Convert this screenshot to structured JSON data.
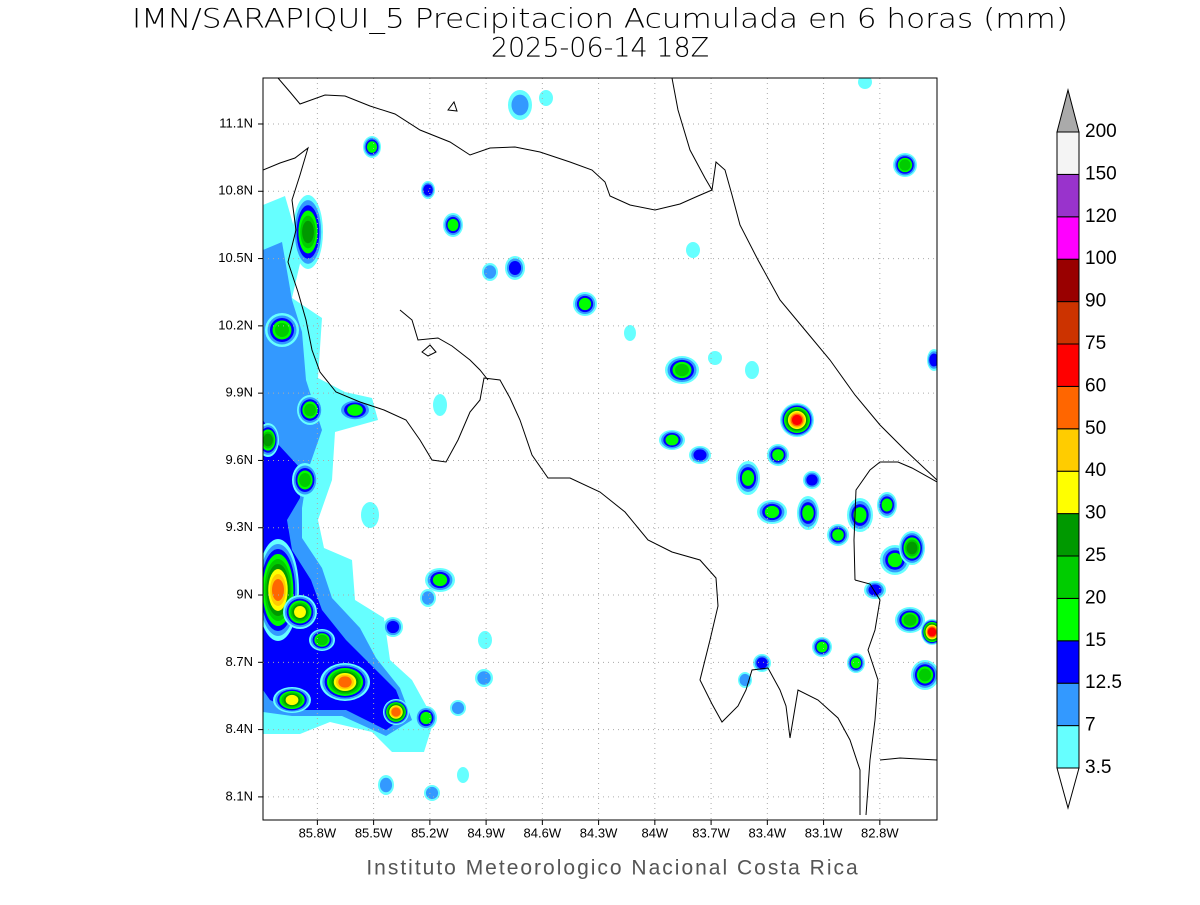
{
  "header": {
    "title": "IMN/SARAPIQUI_5 Precipitacion Acumulada en 6 horas (mm)",
    "subtitle": "2025-06-14 18Z"
  },
  "map": {
    "xlim": [
      -86.09,
      -82.495
    ],
    "ylim": [
      7.997,
      11.305
    ],
    "xticks": [
      {
        "value": -85.8,
        "label": "85.8W"
      },
      {
        "value": -85.5,
        "label": "85.5W"
      },
      {
        "value": -85.2,
        "label": "85.2W"
      },
      {
        "value": -84.9,
        "label": "84.9W"
      },
      {
        "value": -84.6,
        "label": "84.6W"
      },
      {
        "value": -84.3,
        "label": "84.3W"
      },
      {
        "value": -84.0,
        "label": "84W"
      },
      {
        "value": -83.7,
        "label": "83.7W"
      },
      {
        "value": -83.4,
        "label": "83.4W"
      },
      {
        "value": -83.1,
        "label": "83.1W"
      },
      {
        "value": -82.8,
        "label": "82.8W"
      }
    ],
    "yticks": [
      {
        "value": 8.1,
        "label": "8.1N"
      },
      {
        "value": 8.4,
        "label": "8.4N"
      },
      {
        "value": 8.7,
        "label": "8.7N"
      },
      {
        "value": 9.0,
        "label": "9N"
      },
      {
        "value": 9.3,
        "label": "9.3N"
      },
      {
        "value": 9.6,
        "label": "9.6N"
      },
      {
        "value": 9.9,
        "label": "9.9N"
      },
      {
        "value": 10.2,
        "label": "10.2N"
      },
      {
        "value": 10.5,
        "label": "10.5N"
      },
      {
        "value": 10.8,
        "label": "10.8N"
      },
      {
        "value": 11.1,
        "label": "11.1N"
      }
    ]
  },
  "colorbar": {
    "levels": [
      3.5,
      7,
      12.5,
      15,
      20,
      25,
      30,
      40,
      50,
      60,
      75,
      90,
      100,
      120,
      150,
      200
    ],
    "colors": [
      "#66ffff",
      "#3399ff",
      "#0000ff",
      "#00ff00",
      "#00cc00",
      "#009900",
      "#ffff00",
      "#ffcc00",
      "#ff6600",
      "#ff0000",
      "#cc3300",
      "#990000",
      "#ff00ff",
      "#9933cc",
      "#f4f4f4"
    ],
    "under_color": "#ffffff",
    "over_color": "#aaaaaa"
  },
  "footer": "Instituto Meteorologico Nacional Costa Rica"
}
